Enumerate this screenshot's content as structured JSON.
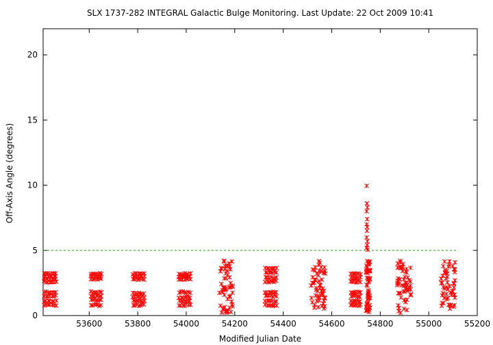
{
  "chart_data": {
    "type": "scatter",
    "title": "SLX 1737-282   INTEGRAL Galactic Bulge Monitoring.  Last Update: 22 Oct 2009 10:41",
    "xlabel": "Modified Julian Date",
    "ylabel": "Off-Axis Angle (degrees)",
    "xlim": [
      53410,
      55200
    ],
    "ylim": [
      0,
      22
    ],
    "xticks": [
      53600,
      53800,
      54000,
      54200,
      54400,
      54600,
      54800,
      55000,
      55200
    ],
    "yticks": [
      0,
      5,
      10,
      15,
      20
    ],
    "grid": false,
    "marker": "asterisk",
    "marker_color": "#ff0000",
    "reference_line": {
      "y": 5,
      "x_range": [
        53410,
        55120
      ],
      "color": "#00c000",
      "style": "dashed"
    },
    "clusters": [
      {
        "x_center": 53440,
        "x_halfwidth": 28,
        "y_levels": [
          0.8,
          1.1,
          1.5,
          1.8,
          2.6,
          2.8,
          3.0,
          3.2
        ]
      },
      {
        "x_center": 53630,
        "x_halfwidth": 24,
        "y_levels": [
          0.8,
          1.2,
          1.5,
          1.8,
          2.8,
          3.0,
          3.2
        ]
      },
      {
        "x_center": 53805,
        "x_halfwidth": 26,
        "y_levels": [
          0.8,
          1.1,
          1.4,
          1.7,
          2.8,
          3.0,
          3.2
        ]
      },
      {
        "x_center": 53995,
        "x_halfwidth": 26,
        "y_levels": [
          0.8,
          1.1,
          1.4,
          1.8,
          2.8,
          3.0,
          3.2
        ]
      },
      {
        "x_center": 54165,
        "x_halfwidth": 28,
        "y_range": [
          0.2,
          4.3
        ]
      },
      {
        "x_center": 54350,
        "x_halfwidth": 26,
        "y_levels": [
          0.8,
          1.1,
          1.5,
          1.8,
          2.6,
          2.9,
          3.3,
          3.6
        ]
      },
      {
        "x_center": 54545,
        "x_halfwidth": 30,
        "y_range": [
          0.5,
          4.3
        ]
      },
      {
        "x_center": 54700,
        "x_halfwidth": 22,
        "y_levels": [
          0.8,
          1.1,
          1.5,
          1.8,
          2.6,
          2.9,
          3.2
        ]
      },
      {
        "x_center": 54750,
        "x_halfwidth": 8,
        "y_range": [
          0.2,
          4.3
        ]
      },
      {
        "x_center": 54900,
        "x_halfwidth": 30,
        "y_range": [
          0.2,
          4.3
        ]
      },
      {
        "x_center": 55080,
        "x_halfwidth": 30,
        "y_range": [
          0.5,
          4.3
        ]
      }
    ],
    "spike_points": [
      {
        "x": 54744,
        "y": 9.95
      },
      {
        "x": 54745,
        "y": 8.6
      },
      {
        "x": 54747,
        "y": 8.3
      },
      {
        "x": 54744,
        "y": 8.0
      },
      {
        "x": 54746,
        "y": 7.4
      },
      {
        "x": 54744,
        "y": 7.0
      },
      {
        "x": 54746,
        "y": 6.8
      },
      {
        "x": 54745,
        "y": 6.5
      },
      {
        "x": 54744,
        "y": 6.0
      },
      {
        "x": 54747,
        "y": 5.7
      },
      {
        "x": 54746,
        "y": 5.4
      },
      {
        "x": 54744,
        "y": 5.2
      },
      {
        "x": 54748,
        "y": 5.05
      }
    ]
  }
}
